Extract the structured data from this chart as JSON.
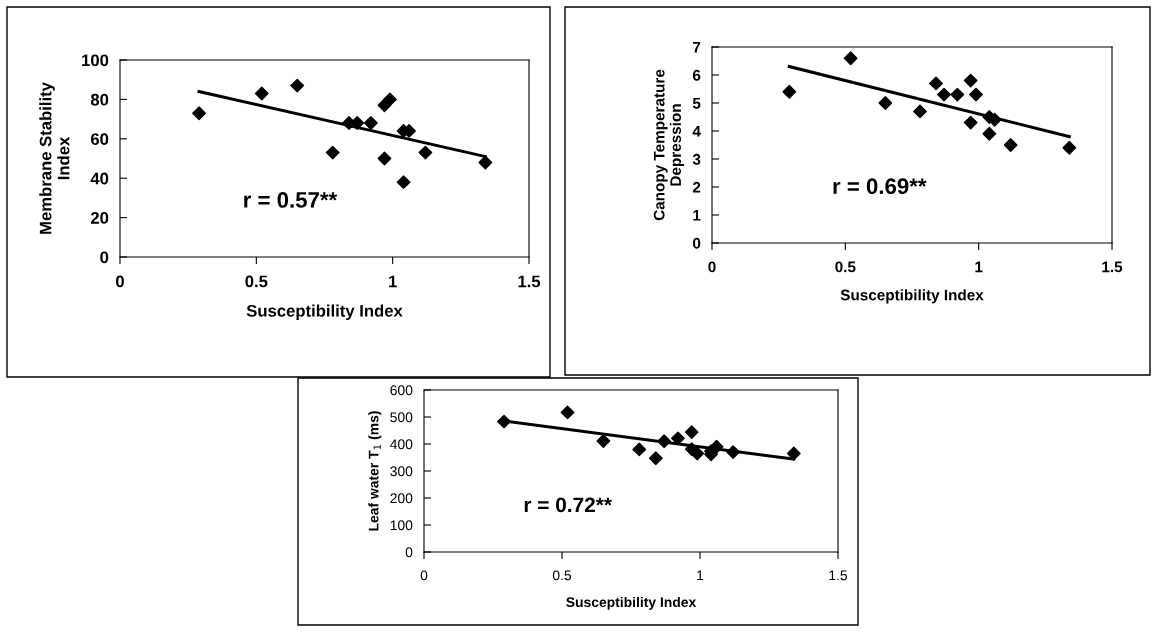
{
  "chart_data": [
    {
      "type": "scatter",
      "xlabel": "Susceptibility Index",
      "ylabel": "Membrane Stability\nIndex",
      "annotations": [
        "r = 0.57**"
      ],
      "xlim": [
        0,
        1.5
      ],
      "xticks": [
        0,
        0.5,
        1,
        1.5
      ],
      "ylim": [
        0,
        100
      ],
      "yticks": [
        0,
        20,
        40,
        60,
        80,
        100
      ],
      "grid": false,
      "series": [
        {
          "marker": "diamond",
          "color": "#000000",
          "x": [
            0.29,
            0.52,
            0.65,
            0.78,
            0.84,
            0.87,
            0.92,
            0.97,
            0.99,
            0.97,
            1.04,
            1.06,
            1.04,
            1.12,
            1.34
          ],
          "values": [
            73,
            83,
            87,
            53,
            68,
            68,
            68,
            77,
            80,
            50,
            64,
            64,
            38,
            53,
            48
          ]
        },
        {
          "type": "line",
          "color": "#000000",
          "x": [
            0.29,
            1.34
          ],
          "values": [
            84,
            51
          ]
        }
      ]
    },
    {
      "type": "scatter",
      "xlabel": "Susceptibility Index",
      "ylabel": "Canopy Temperature\nDepression",
      "annotations": [
        "r = 0.69**"
      ],
      "xlim": [
        0,
        1.5
      ],
      "xticks": [
        0,
        0.5,
        1,
        1.5
      ],
      "ylim": [
        0,
        7
      ],
      "yticks": [
        0,
        1,
        2,
        3,
        4,
        5,
        6,
        7
      ],
      "grid": false,
      "series": [
        {
          "marker": "diamond",
          "color": "#000000",
          "x": [
            0.29,
            0.52,
            0.65,
            0.78,
            0.84,
            0.87,
            0.92,
            0.97,
            0.99,
            0.97,
            1.04,
            1.06,
            1.04,
            1.12,
            1.34
          ],
          "values": [
            5.4,
            6.6,
            5.0,
            4.7,
            5.7,
            5.3,
            5.3,
            5.8,
            5.3,
            4.3,
            4.5,
            4.4,
            3.9,
            3.5,
            3.4
          ]
        },
        {
          "type": "line",
          "color": "#000000",
          "x": [
            0.29,
            1.34
          ],
          "values": [
            6.3,
            3.8
          ]
        }
      ]
    },
    {
      "type": "scatter",
      "xlabel": "Susceptibility Index",
      "ylabel": "Leaf water T$_{1}$ (ms)",
      "annotations": [
        "r = 0.72**"
      ],
      "xlim": [
        0,
        1.5
      ],
      "xticks": [
        0,
        0.5,
        1,
        1.5
      ],
      "ylim": [
        0,
        600
      ],
      "yticks": [
        0,
        100,
        200,
        300,
        400,
        500,
        600
      ],
      "grid": false,
      "series": [
        {
          "marker": "diamond",
          "color": "#000000",
          "x": [
            0.29,
            0.52,
            0.65,
            0.78,
            0.84,
            0.87,
            0.92,
            0.97,
            0.97,
            0.99,
            1.04,
            1.04,
            1.06,
            1.12,
            1.34
          ],
          "values": [
            483,
            517,
            411,
            380,
            347,
            410,
            421,
            444,
            381,
            365,
            362,
            373,
            390,
            370,
            365
          ]
        },
        {
          "type": "line",
          "color": "#000000",
          "x": [
            0.29,
            1.34
          ],
          "values": [
            485,
            344
          ]
        }
      ]
    }
  ]
}
